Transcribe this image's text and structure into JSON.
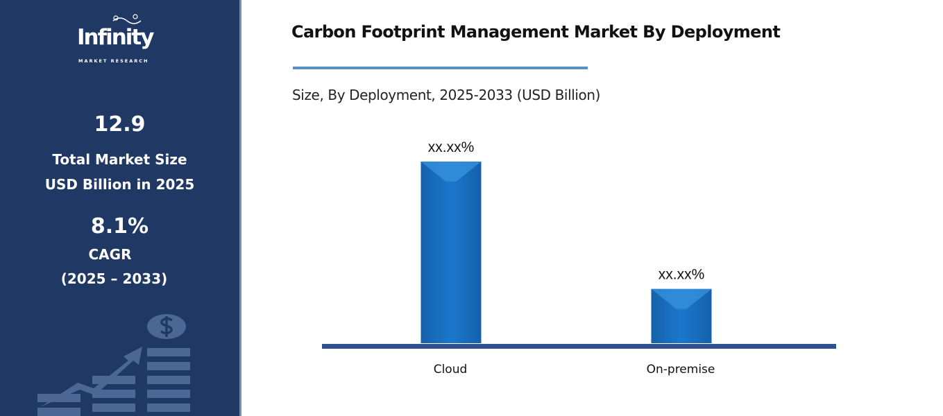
{
  "sidebar": {
    "logo_text": "Infinity",
    "logo_subtext": "MARKET RESEARCH",
    "market_size_value": "12.9",
    "market_size_label_1": "Total Market Size",
    "market_size_label_2": "USD Billion in 2025",
    "cagr_value": "8.1%",
    "cagr_label": "CAGR",
    "cagr_period": "(2025 – 2033)",
    "decor_icon": "growth-chart-dollar-icon"
  },
  "header": {
    "title": "Carbon Footprint Management Market By Deployment",
    "subtitle": "Size, By Deployment, 2025-2033 (USD Billion)"
  },
  "colors": {
    "sidebar": "#203864",
    "bar": "#1a6fc0",
    "axis": "#2f4f8f",
    "accent": "#5b8fc4"
  },
  "chart_data": {
    "type": "bar",
    "title": "Carbon Footprint Management Market By Deployment",
    "subtitle": "Size, By Deployment, 2025-2033 (USD Billion)",
    "categories": [
      "Cloud",
      "On-premise"
    ],
    "values": [
      77,
      23
    ],
    "data_labels": [
      "xx.xx%",
      "xx.xx%"
    ],
    "xlabel": "",
    "ylabel": "",
    "ylim": [
      0,
      77
    ],
    "grid": false,
    "legend": "none"
  }
}
